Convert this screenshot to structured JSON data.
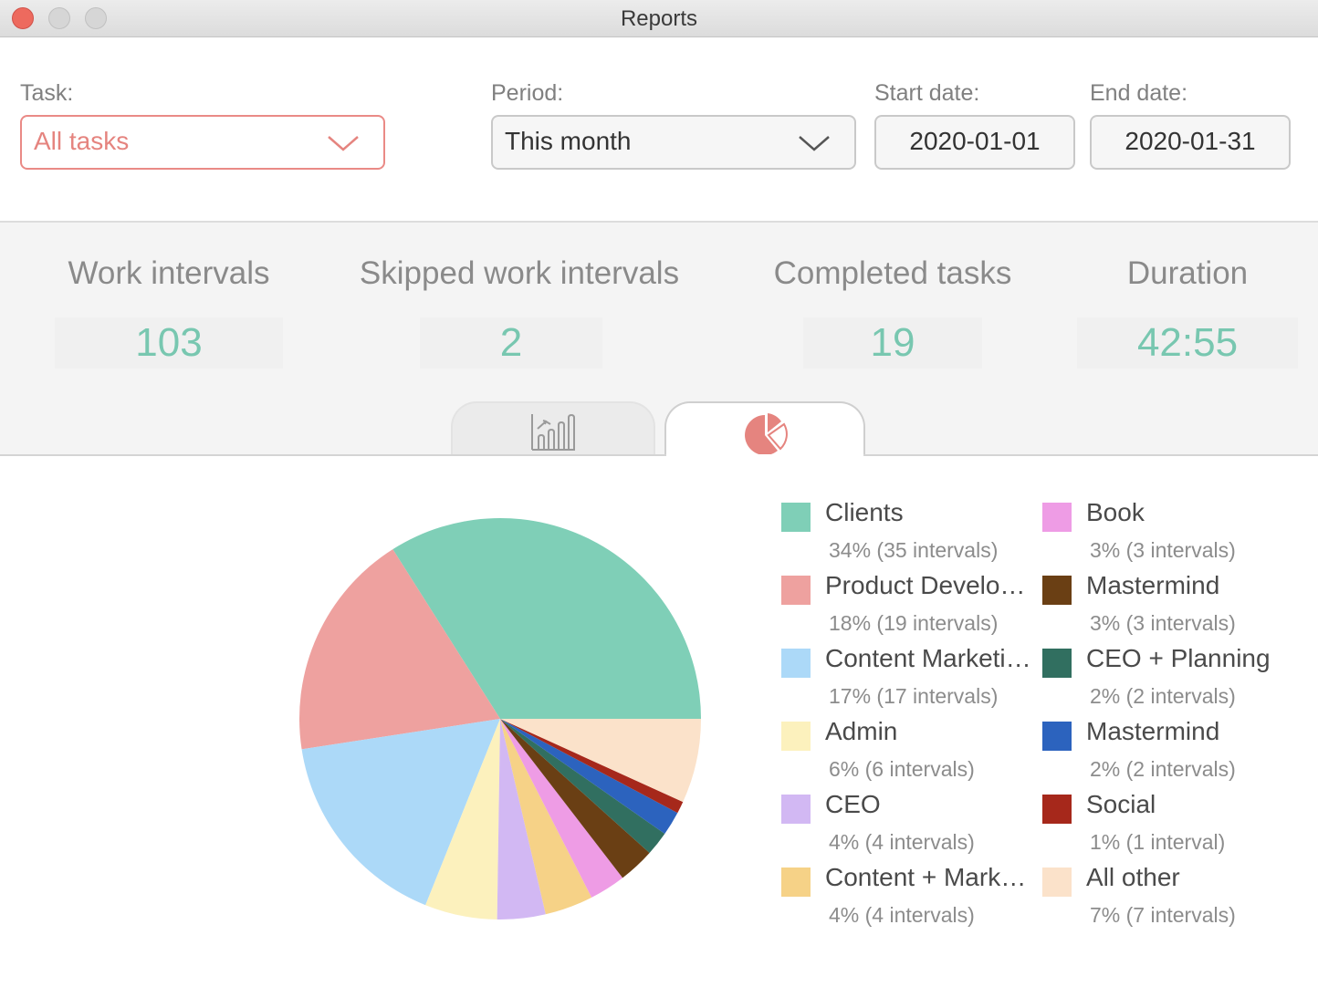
{
  "window": {
    "title": "Reports"
  },
  "filters": {
    "task_label": "Task:",
    "task_value": "All tasks",
    "period_label": "Period:",
    "period_value": "This month",
    "start_label": "Start date:",
    "start_value": "2020-01-01",
    "end_label": "End date:",
    "end_value": "2020-01-31"
  },
  "stats": [
    {
      "label": "Work intervals",
      "value": "103"
    },
    {
      "label": "Skipped work intervals",
      "value": "2"
    },
    {
      "label": "Completed tasks",
      "value": "19"
    },
    {
      "label": "Duration",
      "value": "42:55"
    }
  ],
  "tabs": [
    {
      "icon": "bar-chart-icon",
      "selected": false
    },
    {
      "icon": "pie-chart-icon",
      "selected": true
    }
  ],
  "colors": {
    "accent": "#78c7b0",
    "task_accent": "#e5847f"
  },
  "legend": [
    {
      "name": "Clients",
      "detail": "34% (35 intervals)",
      "color": "#7fcfb7"
    },
    {
      "name": "Product Develo…",
      "detail": "18% (19 intervals)",
      "color": "#eea19f"
    },
    {
      "name": "Content Marketi…",
      "detail": "17% (17 intervals)",
      "color": "#acd9f8"
    },
    {
      "name": "Admin",
      "detail": "6% (6 intervals)",
      "color": "#fcf1bd"
    },
    {
      "name": "CEO",
      "detail": "4% (4 intervals)",
      "color": "#d2b8f3"
    },
    {
      "name": "Content + Mark…",
      "detail": "4% (4 intervals)",
      "color": "#f6d287"
    },
    {
      "name": "Book",
      "detail": "3% (3 intervals)",
      "color": "#ee9ce5"
    },
    {
      "name": "Mastermind",
      "detail": "3% (3 intervals)",
      "color": "#6a3f14"
    },
    {
      "name": "CEO + Planning",
      "detail": "2% (2 intervals)",
      "color": "#316f60"
    },
    {
      "name": "Mastermind",
      "detail": "2% (2 intervals)",
      "color": "#2c63be"
    },
    {
      "name": "Social",
      "detail": "1% (1 interval)",
      "color": "#a6281b"
    },
    {
      "name": "All other",
      "detail": "7% (7 intervals)",
      "color": "#fbe2ca"
    }
  ],
  "chart_data": {
    "type": "pie",
    "categories": [
      "Clients",
      "Product Develo…",
      "Content Marketi…",
      "Admin",
      "CEO",
      "Content + Mark…",
      "Book",
      "Mastermind",
      "CEO + Planning",
      "Mastermind",
      "Social",
      "All other"
    ],
    "values": [
      35,
      19,
      17,
      6,
      4,
      4,
      3,
      3,
      2,
      2,
      1,
      7
    ],
    "colors": [
      "#7fcfb7",
      "#eea19f",
      "#acd9f8",
      "#fcf1bd",
      "#d2b8f3",
      "#f6d287",
      "#ee9ce5",
      "#6a3f14",
      "#316f60",
      "#2c63be",
      "#a6281b",
      "#fbe2ca"
    ]
  }
}
